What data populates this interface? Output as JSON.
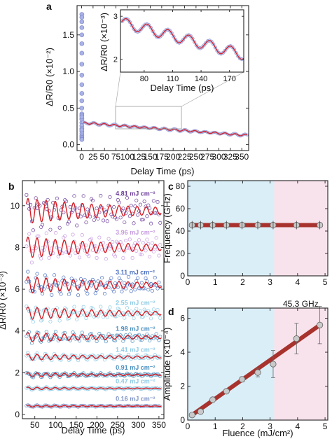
{
  "chart_data": [
    {
      "panel": "a",
      "type": "scatter",
      "xlabel": "Delay Time (ps)",
      "ylabel": "ΔR/R0 (×10⁻²)",
      "xlim": [
        -10,
        365
      ],
      "ylim": [
        -0.08,
        1.9
      ],
      "x_ticks": [
        0,
        25,
        50,
        75,
        100,
        125,
        150,
        175,
        200,
        225,
        250,
        275,
        300,
        325,
        350
      ],
      "y_ticks": [
        0.0,
        0.5,
        1.0,
        1.5
      ],
      "peak": {
        "x": 0.5,
        "y": 1.78
      },
      "baseline": {
        "y0": 0.3,
        "slope_per_ps": -0.00048,
        "osc_amp": 0.012,
        "period_ps": 22
      },
      "series": [
        {
          "values": "measured"
        },
        {
          "values": "fit"
        }
      ],
      "inset": {
        "xlabel": "Delay Time (ps)",
        "ylabel": "ΔR/R0 (×10⁻³)",
        "xlim": [
          55,
          185
        ],
        "ylim": [
          1.7,
          3.15
        ],
        "x_ticks": [
          80,
          110,
          140,
          170
        ],
        "y_ticks": [
          2,
          3
        ],
        "start": 2.86,
        "slope_per_ps": -0.0058,
        "osc_amp": 0.12,
        "period_ps": 22
      }
    },
    {
      "panel": "b",
      "type": "line",
      "xlabel": "Delay Time (ps)",
      "ylabel": "ΔR/R0 (×10⁻³)",
      "xlim": [
        20,
        362
      ],
      "ylim": [
        -0.2,
        11.2
      ],
      "x_ticks": [
        50,
        100,
        150,
        200,
        250,
        300,
        350
      ],
      "y_ticks": [
        0,
        2,
        4,
        6,
        8,
        10
      ],
      "period_ps": 22,
      "series": [
        {
          "name": "0.16 mJ cm⁻²",
          "offset": 0.4,
          "amp": 0.04,
          "color": "#7f94c6"
        },
        {
          "name": "0.47 mJ cm⁻²",
          "offset": 1.25,
          "amp": 0.06,
          "color": "#8ecbe6"
        },
        {
          "name": "0.91 mJ cm⁻²",
          "offset": 1.9,
          "amp": 0.1,
          "color": "#4a8fc0"
        },
        {
          "name": "1.41 mJ cm⁻²",
          "offset": 2.75,
          "amp": 0.15,
          "color": "#8ecbe6"
        },
        {
          "name": "1.98 mJ cm⁻²",
          "offset": 3.7,
          "amp": 0.22,
          "color": "#4a8fc0"
        },
        {
          "name": "2.55 mJ cm⁻²",
          "offset": 4.85,
          "amp": 0.3,
          "color": "#8ecbe6"
        },
        {
          "name": "3.11 mJ cm⁻²",
          "offset": 6.2,
          "amp": 0.4,
          "color": "#4a6fc0"
        },
        {
          "name": "3.96 mJ cm⁻²",
          "offset": 8.0,
          "amp": 0.5,
          "color": "#c79be0"
        },
        {
          "name": "4.81 mJ cm⁻²",
          "offset": 9.75,
          "amp": 0.6,
          "color": "#6a3c9a"
        }
      ]
    },
    {
      "panel": "c",
      "type": "scatter",
      "xlabel": "",
      "ylabel": "Frequency (GHz)",
      "xlim": [
        0,
        5.1
      ],
      "ylim": [
        0,
        85
      ],
      "x_ticks": [
        0,
        1,
        2,
        3,
        4,
        5
      ],
      "y_ticks": [
        0,
        20,
        40,
        60,
        80
      ],
      "region_split": 3.15,
      "annotation": "45.3 GHz",
      "x": [
        0.16,
        0.47,
        0.91,
        1.41,
        1.98,
        2.55,
        3.11,
        3.96,
        4.81
      ],
      "values": [
        45.3,
        45.3,
        45.3,
        45.3,
        45.3,
        45.3,
        45.3,
        45.3,
        45.3
      ],
      "fit_value": 45.3
    },
    {
      "panel": "d",
      "type": "scatter",
      "xlabel": "Fluence (mJ/cm²)",
      "ylabel": "Amplitude (×10⁻⁴)",
      "xlim": [
        0,
        5.1
      ],
      "ylim": [
        0,
        6.6
      ],
      "x_ticks": [
        0,
        1,
        2,
        3,
        4,
        5
      ],
      "y_ticks": [
        0,
        2,
        4,
        6
      ],
      "region_split": 3.15,
      "x": [
        0.16,
        0.47,
        0.91,
        1.41,
        1.98,
        2.55,
        3.11,
        3.96,
        4.81
      ],
      "values": [
        0.3,
        0.5,
        1.2,
        1.7,
        2.4,
        2.8,
        3.3,
        4.8,
        5.6
      ],
      "errors": [
        0.05,
        0.05,
        0.1,
        0.1,
        0.15,
        0.25,
        0.8,
        0.9,
        1.1
      ],
      "fit": {
        "x": [
          0.16,
          4.81
        ],
        "y": [
          0.3,
          5.6
        ]
      }
    }
  ],
  "labels": {
    "a": "a",
    "b": "b",
    "c": "c",
    "d": "d",
    "a_xlabel": "Delay Time (ps)",
    "a_ylabel": "ΔR/R0 (×10⁻²)",
    "inset_xlabel": "Delay Time (ps)",
    "inset_ylabel": "ΔR/R0 (×10⁻³)",
    "b_xlabel": "Delay Time (ps)",
    "b_ylabel": "ΔR/R0 (×10⁻³)",
    "c_ylabel": "Frequency (GHz)",
    "c_annotation": "45.3 GHz",
    "d_ylabel": "Amplitude (×10⁻⁴)",
    "d_xlabel": "Fluence (mJ/cm²)"
  },
  "colors": {
    "fit": "#d42027",
    "marker": "#7c84c8",
    "band_blue": "#daeef8",
    "band_pink": "#f8e3ec",
    "trend": "#a8322d",
    "point": "#c9c9c9"
  }
}
